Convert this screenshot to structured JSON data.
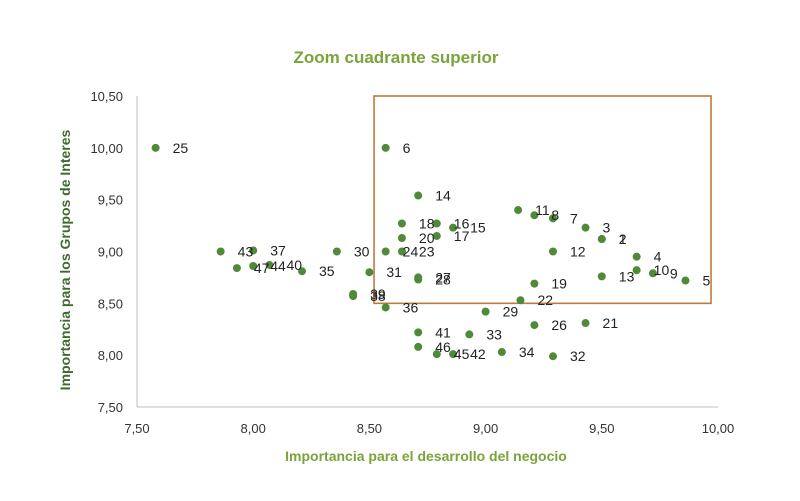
{
  "colors": {
    "title": "#7aa33a",
    "point": "#4f8a3a",
    "ylabel": "#3f6b2f",
    "xlabel": "#7aa33a",
    "highlight": "#c07a3c",
    "axis": "#bfbfbf"
  },
  "chart_data": {
    "type": "scatter",
    "title": "Zoom cuadrante superior",
    "xlabel": "Importancia para el desarrollo del negocio",
    "ylabel": "Importancia para los Grupos de Interes",
    "xlim": [
      7.5,
      10.0
    ],
    "ylim": [
      7.5,
      10.5
    ],
    "x_ticks": [
      "7,50",
      "8,00",
      "8,50",
      "9,00",
      "9,50",
      "10,00"
    ],
    "y_ticks": [
      "7,50",
      "8,00",
      "8,50",
      "9,00",
      "9,50",
      "10,00",
      "10,50"
    ],
    "grid": false,
    "highlight_region": {
      "x": [
        8.52,
        9.97
      ],
      "y": [
        8.5,
        10.5
      ]
    },
    "points": [
      {
        "label": "1",
        "x": 9.5,
        "y": 9.12
      },
      {
        "label": "2",
        "x": 9.5,
        "y": 9.12
      },
      {
        "label": "3",
        "x": 9.43,
        "y": 9.23
      },
      {
        "label": "4",
        "x": 9.65,
        "y": 8.95
      },
      {
        "label": "5",
        "x": 9.86,
        "y": 8.72
      },
      {
        "label": "6",
        "x": 8.57,
        "y": 10.0
      },
      {
        "label": "7",
        "x": 9.29,
        "y": 9.32
      },
      {
        "label": "8",
        "x": 9.21,
        "y": 9.35
      },
      {
        "label": "9",
        "x": 9.72,
        "y": 8.79
      },
      {
        "label": "10",
        "x": 9.65,
        "y": 8.82
      },
      {
        "label": "11",
        "x": 9.14,
        "y": 9.4
      },
      {
        "label": "12",
        "x": 9.29,
        "y": 9.0
      },
      {
        "label": "13",
        "x": 9.5,
        "y": 8.76
      },
      {
        "label": "14",
        "x": 8.71,
        "y": 9.54
      },
      {
        "label": "15",
        "x": 8.86,
        "y": 9.23
      },
      {
        "label": "16",
        "x": 8.79,
        "y": 9.27
      },
      {
        "label": "17",
        "x": 8.79,
        "y": 9.15
      },
      {
        "label": "18",
        "x": 8.64,
        "y": 9.27
      },
      {
        "label": "19",
        "x": 9.21,
        "y": 8.69
      },
      {
        "label": "20",
        "x": 8.64,
        "y": 9.13
      },
      {
        "label": "21",
        "x": 9.43,
        "y": 8.31
      },
      {
        "label": "22",
        "x": 9.15,
        "y": 8.53
      },
      {
        "label": "23",
        "x": 8.64,
        "y": 9.0
      },
      {
        "label": "24",
        "x": 8.57,
        "y": 9.0
      },
      {
        "label": "25",
        "x": 7.58,
        "y": 10.0
      },
      {
        "label": "26",
        "x": 9.21,
        "y": 8.29
      },
      {
        "label": "27",
        "x": 8.71,
        "y": 8.75
      },
      {
        "label": "28",
        "x": 8.71,
        "y": 8.73
      },
      {
        "label": "29",
        "x": 9.0,
        "y": 8.42
      },
      {
        "label": "30",
        "x": 8.36,
        "y": 9.0
      },
      {
        "label": "31",
        "x": 8.5,
        "y": 8.8
      },
      {
        "label": "32",
        "x": 9.29,
        "y": 7.99
      },
      {
        "label": "33",
        "x": 8.93,
        "y": 8.2
      },
      {
        "label": "34",
        "x": 9.07,
        "y": 8.03
      },
      {
        "label": "35",
        "x": 8.21,
        "y": 8.81
      },
      {
        "label": "36",
        "x": 8.57,
        "y": 8.46
      },
      {
        "label": "37",
        "x": 8.0,
        "y": 9.01
      },
      {
        "label": "38",
        "x": 8.43,
        "y": 8.57
      },
      {
        "label": "39",
        "x": 8.43,
        "y": 8.59
      },
      {
        "label": "40",
        "x": 8.07,
        "y": 8.87
      },
      {
        "label": "41",
        "x": 8.71,
        "y": 8.22
      },
      {
        "label": "42",
        "x": 8.86,
        "y": 8.01
      },
      {
        "label": "43",
        "x": 7.86,
        "y": 9.0
      },
      {
        "label": "44",
        "x": 8.0,
        "y": 8.86
      },
      {
        "label": "45",
        "x": 8.79,
        "y": 8.01
      },
      {
        "label": "46",
        "x": 8.71,
        "y": 8.08
      },
      {
        "label": "47",
        "x": 7.93,
        "y": 8.84
      }
    ]
  }
}
